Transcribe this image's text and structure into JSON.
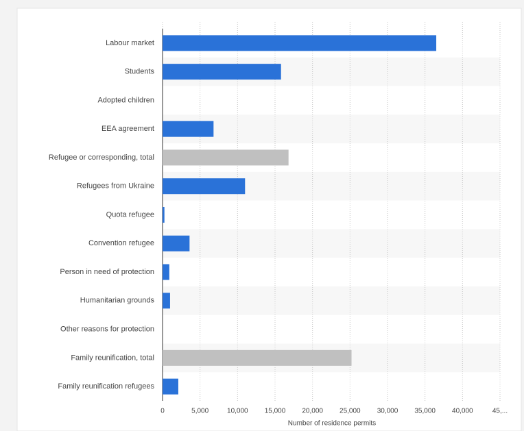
{
  "chart_data": {
    "type": "hbar",
    "x_label": "Number of residence permits",
    "categories": [
      "Labour market",
      "Students",
      "Adopted children",
      "EEA agreement",
      "Refugee or corresponding, total",
      "Refugees from Ukraine",
      "Quota refugee",
      "Convention refugee",
      "Person in need of protection",
      "Humanitarian grounds",
      "Other reasons for protection",
      "Family reunification, total",
      "Family reunification refugees"
    ],
    "values": [
      36500,
      15800,
      0,
      6800,
      16800,
      11000,
      250,
      3600,
      900,
      1000,
      0,
      25200,
      2100
    ],
    "colors": [
      "#2a72d8",
      "#2a72d8",
      "#2a72d8",
      "#2a72d8",
      "#c0c0c0",
      "#2a72d8",
      "#2a72d8",
      "#2a72d8",
      "#2a72d8",
      "#2a72d8",
      "#2a72d8",
      "#c0c0c0",
      "#2a72d8"
    ],
    "xlim": [
      0,
      45000
    ],
    "xticks": [
      0,
      {
        "value": 5000,
        "label": "5,000"
      },
      {
        "value": 10000,
        "label": "10,000"
      },
      {
        "value": 15000,
        "label": "15,000"
      },
      {
        "value": 20000,
        "label": "20,000"
      },
      {
        "value": 25000,
        "label": "25,000"
      },
      {
        "value": 30000,
        "label": "30,000"
      },
      {
        "value": 35000,
        "label": "35,000"
      },
      {
        "value": 40000,
        "label": "40,000"
      },
      {
        "value": 45000,
        "label": "45,..."
      }
    ],
    "grid": true
  }
}
